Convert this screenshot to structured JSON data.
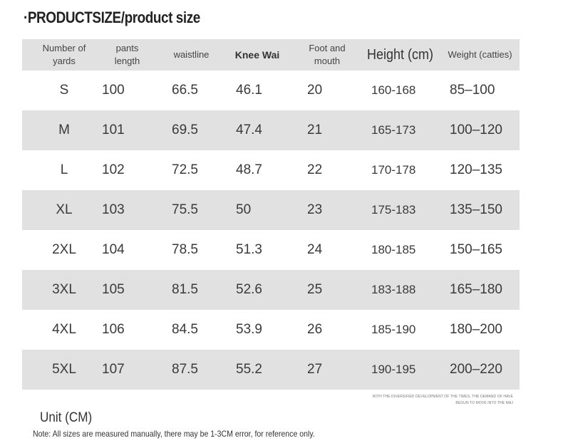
{
  "title": "·PRODUCTSIZE/product size",
  "headers": {
    "size": "Number of yards",
    "pants_length": "pants length",
    "waistline": "waistline",
    "knee": "Knee Wai",
    "foot": "Foot and mouth",
    "height": "Height (cm)",
    "weight": "Weight (catties)"
  },
  "rows": [
    {
      "size": "S",
      "pants_length": "100",
      "waistline": "66.5",
      "knee": "46.1",
      "foot": "20",
      "height": "160-168",
      "weight": "85–100"
    },
    {
      "size": "M",
      "pants_length": "101",
      "waistline": "69.5",
      "knee": "47.4",
      "foot": "21",
      "height": "165-173",
      "weight": "100–120"
    },
    {
      "size": "L",
      "pants_length": "102",
      "waistline": "72.5",
      "knee": "48.7",
      "foot": "22",
      "height": "170-178",
      "weight": "120–135"
    },
    {
      "size": "XL",
      "pants_length": "103",
      "waistline": "75.5",
      "knee": "50",
      "foot": "23",
      "height": "175-183",
      "weight": "135–150"
    },
    {
      "size": "2XL",
      "pants_length": "104",
      "waistline": "78.5",
      "knee": "51.3",
      "foot": "24",
      "height": "180-185",
      "weight": "150–165"
    },
    {
      "size": "3XL",
      "pants_length": "105",
      "waistline": "81.5",
      "knee": "52.6",
      "foot": "25",
      "height": "183-188",
      "weight": "165–180"
    },
    {
      "size": "4XL",
      "pants_length": "106",
      "waistline": "84.5",
      "knee": "53.9",
      "foot": "26",
      "height": "185-190",
      "weight": "180–200"
    },
    {
      "size": "5XL",
      "pants_length": "107",
      "waistline": "87.5",
      "knee": "55.2",
      "foot": "27",
      "height": "190-195",
      "weight": "200–220"
    }
  ],
  "fineprint": "WITH THE DIVERSIFIED DEVELOPMENT OF THE TIMES, THE DEMAND OF HAVE BEGUN TO MOVE INTO THE MAJ",
  "unit": "Unit (CM)",
  "note": "Note: All sizes are measured manually, there may be 1-3CM error, for reference only."
}
